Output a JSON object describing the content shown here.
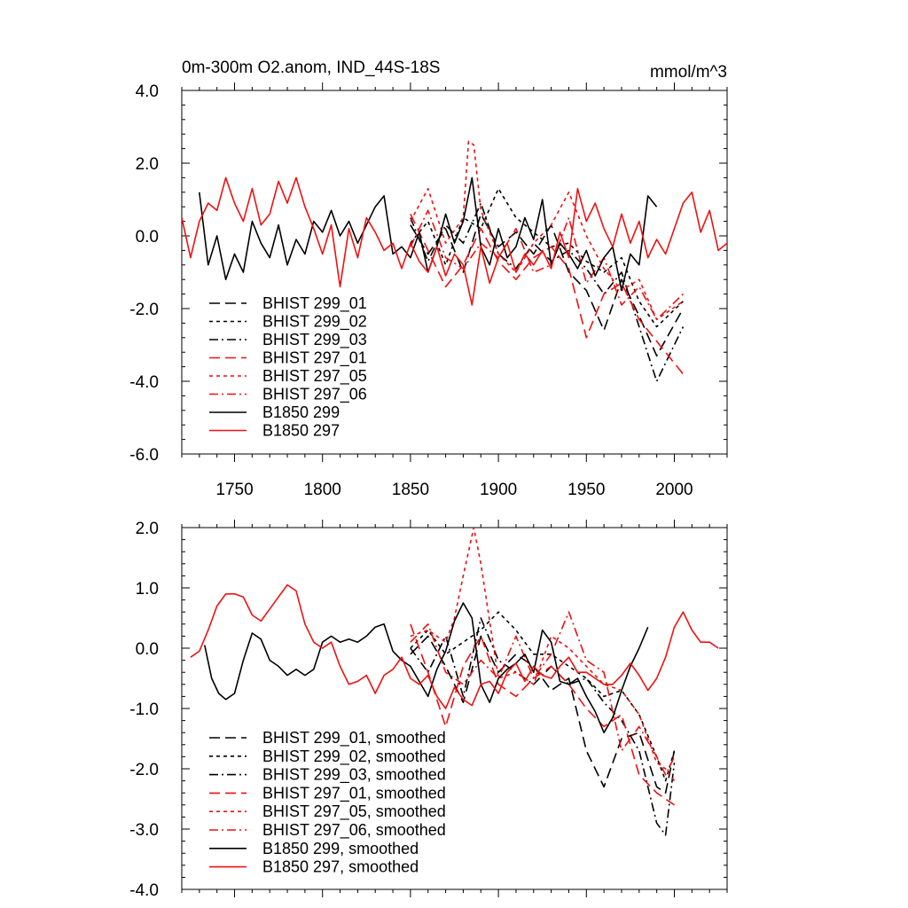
{
  "colors": {
    "black": "#000000",
    "red": "#ee1111"
  },
  "chart_data": [
    {
      "type": "line",
      "title": "0m-300m O2.anom, IND_44S-18S",
      "units": "mmol/m^3",
      "xlim": [
        1720,
        2030
      ],
      "ylim": [
        -6.0,
        4.0
      ],
      "x_ticks": [
        1750,
        1800,
        1850,
        1900,
        1950,
        2000
      ],
      "x_tick_labels": [
        "1750",
        "1800",
        "1850",
        "1900",
        "1950",
        "2000"
      ],
      "y_ticks": [
        4.0,
        2.0,
        0.0,
        -2.0,
        -4.0,
        -6.0
      ],
      "y_tick_labels": [
        "4.0",
        "2.0",
        "0.0",
        "-2.0",
        "-4.0",
        "-6.0"
      ],
      "legend_position": "lower-left",
      "series": [
        {
          "name": "BHIST 299_01",
          "color": "black",
          "dash": "long-dash",
          "x": [
            1850,
            1860,
            1870,
            1880,
            1890,
            1900,
            1910,
            1920,
            1930,
            1940,
            1950,
            1960,
            1970,
            1980,
            1990,
            2005
          ],
          "y": [
            0.3,
            -0.5,
            0.2,
            -1.0,
            0.6,
            -0.3,
            0.1,
            -0.5,
            0.3,
            -1.0,
            -1.5,
            -2.6,
            -1.2,
            -2.2,
            -3.3,
            -2.0
          ]
        },
        {
          "name": "BHIST 299_02",
          "color": "black",
          "dash": "short-dash",
          "x": [
            1850,
            1860,
            1870,
            1880,
            1890,
            1900,
            1910,
            1920,
            1930,
            1940,
            1950,
            1960,
            1970,
            1980,
            1990,
            2005
          ],
          "y": [
            -0.2,
            0.4,
            -0.8,
            0.5,
            0.2,
            1.3,
            0.5,
            0.1,
            -0.3,
            -0.2,
            -0.7,
            -1.0,
            -0.6,
            -1.8,
            -2.5,
            -1.8
          ]
        },
        {
          "name": "BHIST 299_03",
          "color": "black",
          "dash": "dash-dot",
          "x": [
            1850,
            1860,
            1870,
            1880,
            1890,
            1900,
            1910,
            1920,
            1930,
            1940,
            1950,
            1960,
            1970,
            1980,
            1990,
            2005
          ],
          "y": [
            0.5,
            -0.7,
            0.3,
            -0.2,
            0.9,
            -0.5,
            -0.9,
            -0.2,
            -0.7,
            -0.4,
            -0.9,
            -1.6,
            -1.0,
            -2.5,
            -4.0,
            -2.5
          ]
        },
        {
          "name": "BHIST 297_01",
          "color": "red",
          "dash": "long-dash",
          "x": [
            1850,
            1860,
            1870,
            1880,
            1890,
            1900,
            1910,
            1920,
            1930,
            1940,
            1950,
            1960,
            1970,
            1980,
            1990,
            2005
          ],
          "y": [
            0.6,
            -0.4,
            -1.4,
            -0.8,
            0.2,
            -0.7,
            -1.2,
            -0.6,
            -0.3,
            -0.9,
            -2.8,
            -1.6,
            -1.3,
            -2.3,
            -2.9,
            -3.8
          ]
        },
        {
          "name": "BHIST 297_05",
          "color": "red",
          "dash": "short-dash",
          "x": [
            1850,
            1860,
            1870,
            1880,
            1883,
            1886,
            1890,
            1900,
            1910,
            1920,
            1930,
            1940,
            1950,
            1960,
            1970,
            1980,
            1990,
            2005
          ],
          "y": [
            0.4,
            1.3,
            -0.2,
            0.5,
            2.6,
            2.5,
            0.7,
            -0.5,
            -1.0,
            -0.2,
            0.3,
            1.2,
            0.0,
            -0.9,
            -1.5,
            -1.2,
            -2.3,
            -1.8
          ]
        },
        {
          "name": "BHIST 297_06",
          "color": "red",
          "dash": "dash-dot",
          "x": [
            1850,
            1860,
            1870,
            1880,
            1890,
            1900,
            1910,
            1920,
            1930,
            1940,
            1950,
            1960,
            1970,
            1980,
            1990,
            2005
          ],
          "y": [
            -0.3,
            0.7,
            -0.6,
            -0.9,
            -0.2,
            -0.6,
            0.2,
            -1.0,
            -0.8,
            0.5,
            -1.3,
            -0.6,
            -1.9,
            -1.4,
            -2.3,
            -1.6
          ]
        },
        {
          "name": "B1850 299",
          "color": "black",
          "dash": "solid",
          "x": [
            1730,
            1735,
            1740,
            1745,
            1750,
            1755,
            1760,
            1765,
            1770,
            1775,
            1780,
            1785,
            1790,
            1795,
            1800,
            1805,
            1810,
            1815,
            1820,
            1825,
            1830,
            1835,
            1840,
            1845,
            1850,
            1855,
            1860,
            1865,
            1870,
            1875,
            1880,
            1885,
            1890,
            1895,
            1900,
            1905,
            1910,
            1915,
            1920,
            1925,
            1930,
            1935,
            1940,
            1945,
            1950,
            1955,
            1960,
            1965,
            1970,
            1975,
            1980,
            1985,
            1990
          ],
          "y": [
            1.2,
            -0.8,
            0.0,
            -1.2,
            -0.5,
            -1.0,
            0.4,
            -0.2,
            -0.6,
            0.3,
            -0.8,
            -0.1,
            -0.5,
            0.4,
            0.1,
            0.7,
            0.0,
            0.4,
            -0.2,
            0.3,
            0.8,
            1.1,
            -0.5,
            -0.3,
            -0.6,
            0.1,
            -1.0,
            -0.3,
            0.6,
            -0.2,
            0.4,
            1.6,
            -0.3,
            -0.8,
            0.2,
            -0.6,
            -0.3,
            0.5,
            -0.1,
            1.0,
            -0.8,
            -0.2,
            -0.5,
            -0.9,
            -0.4,
            -1.1,
            -0.6,
            -0.3,
            -1.5,
            -0.5,
            -0.8,
            1.1,
            0.8
          ]
        },
        {
          "name": "B1850 297",
          "color": "red",
          "dash": "solid",
          "x": [
            1720,
            1725,
            1730,
            1735,
            1740,
            1745,
            1750,
            1755,
            1760,
            1765,
            1770,
            1775,
            1780,
            1785,
            1790,
            1795,
            1800,
            1805,
            1810,
            1815,
            1820,
            1825,
            1830,
            1835,
            1840,
            1845,
            1850,
            1855,
            1860,
            1865,
            1870,
            1875,
            1880,
            1885,
            1890,
            1895,
            1900,
            1905,
            1910,
            1915,
            1920,
            1925,
            1930,
            1935,
            1940,
            1945,
            1950,
            1955,
            1960,
            1965,
            1970,
            1975,
            1980,
            1985,
            1990,
            1995,
            2000,
            2005,
            2010,
            2015,
            2020,
            2025,
            2030
          ],
          "y": [
            0.5,
            -0.6,
            0.4,
            0.9,
            0.7,
            1.6,
            0.9,
            0.4,
            1.3,
            0.3,
            0.6,
            1.5,
            0.9,
            1.6,
            0.8,
            0.2,
            -0.5,
            0.3,
            -1.4,
            0.2,
            -0.6,
            0.5,
            0.1,
            -0.4,
            -0.2,
            -0.9,
            -0.2,
            -0.7,
            -1.0,
            -0.3,
            -1.1,
            -0.5,
            -0.8,
            -1.9,
            -0.3,
            -1.3,
            -0.6,
            -0.2,
            -1.0,
            -0.5,
            -0.8,
            -0.4,
            -0.9,
            0.1,
            -0.6,
            1.3,
            0.4,
            0.9,
            0.2,
            -0.3,
            0.6,
            -0.2,
            0.4,
            -0.6,
            -0.1,
            -0.5,
            0.2,
            0.9,
            1.2,
            0.1,
            0.7,
            -0.4,
            -0.2
          ]
        }
      ]
    },
    {
      "type": "line",
      "title": "",
      "xlim": [
        1720,
        2030
      ],
      "ylim": [
        -4.0,
        2.0
      ],
      "x_ticks": [
        1750,
        1800,
        1850,
        1900,
        1950,
        2000
      ],
      "y_ticks": [
        2.0,
        1.0,
        0.0,
        -1.0,
        -2.0,
        -3.0,
        -4.0
      ],
      "y_tick_labels": [
        "2.0",
        "1.0",
        "0.0",
        "-1.0",
        "-2.0",
        "-3.0",
        "-4.0"
      ],
      "legend_position": "lower-left",
      "series": [
        {
          "name": "BHIST 299_01, smoothed",
          "color": "black",
          "dash": "long-dash",
          "x": [
            1850,
            1860,
            1870,
            1880,
            1890,
            1900,
            1910,
            1920,
            1930,
            1940,
            1950,
            1960,
            1970,
            1980,
            1990,
            1995,
            2000
          ],
          "y": [
            -0.1,
            0.2,
            -0.3,
            -0.9,
            0.2,
            -0.4,
            -0.1,
            -0.3,
            -0.7,
            -0.5,
            -1.7,
            -2.3,
            -1.5,
            -1.4,
            -2.3,
            -2.4,
            -1.7
          ]
        },
        {
          "name": "BHIST 299_02, smoothed",
          "color": "black",
          "dash": "short-dash",
          "x": [
            1850,
            1860,
            1870,
            1880,
            1890,
            1900,
            1910,
            1920,
            1930,
            1940,
            1950,
            1960,
            1970,
            1980,
            1990,
            1995,
            2000
          ],
          "y": [
            0.0,
            0.3,
            -0.1,
            0.1,
            0.3,
            0.6,
            0.3,
            -0.1,
            -0.1,
            -0.3,
            -0.5,
            -0.8,
            -0.7,
            -1.1,
            -1.8,
            -2.2,
            -1.7
          ]
        },
        {
          "name": "BHIST 299_03, smoothed",
          "color": "black",
          "dash": "dash-dot",
          "x": [
            1850,
            1860,
            1870,
            1880,
            1890,
            1900,
            1910,
            1920,
            1930,
            1940,
            1950,
            1960,
            1970,
            1980,
            1990,
            1995,
            2000
          ],
          "y": [
            0.0,
            -0.4,
            0.2,
            -0.8,
            0.5,
            -0.2,
            -0.4,
            -0.6,
            -0.3,
            -0.6,
            -0.5,
            -0.9,
            -1.2,
            -1.7,
            -2.9,
            -3.1,
            -1.9
          ]
        },
        {
          "name": "BHIST 297_01, smoothed",
          "color": "red",
          "dash": "long-dash",
          "x": [
            1850,
            1860,
            1870,
            1880,
            1890,
            1900,
            1910,
            1920,
            1930,
            1940,
            1950,
            1960,
            1970,
            1980,
            1990,
            1995,
            2000
          ],
          "y": [
            0.4,
            -0.4,
            -1.3,
            -0.3,
            0.2,
            -0.6,
            -0.8,
            -0.5,
            -0.3,
            -0.6,
            -1.0,
            -1.3,
            -1.1,
            -2.1,
            -2.4,
            -2.5,
            -2.6
          ]
        },
        {
          "name": "BHIST 297_05, smoothed",
          "color": "red",
          "dash": "short-dash",
          "x": [
            1850,
            1860,
            1870,
            1875,
            1880,
            1886,
            1890,
            1900,
            1910,
            1920,
            1930,
            1940,
            1950,
            1960,
            1970,
            1980,
            1990,
            1995,
            2000
          ],
          "y": [
            0.2,
            0.3,
            0.1,
            0.5,
            1.2,
            2.0,
            1.4,
            -0.5,
            -0.4,
            -0.6,
            0.2,
            0.0,
            -0.3,
            -0.6,
            -0.7,
            -1.1,
            -1.9,
            -2.0,
            -2.2
          ]
        },
        {
          "name": "BHIST 297_06, smoothed",
          "color": "red",
          "dash": "dash-dot",
          "x": [
            1850,
            1860,
            1870,
            1880,
            1890,
            1900,
            1910,
            1920,
            1930,
            1940,
            1950,
            1960,
            1970,
            1980,
            1990,
            1995,
            2000
          ],
          "y": [
            0.1,
            0.4,
            -0.4,
            -0.6,
            -0.2,
            -0.5,
            0.2,
            -0.5,
            -0.1,
            0.6,
            -0.2,
            -0.4,
            -1.7,
            -1.3,
            -1.8,
            -2.1,
            -1.8
          ]
        },
        {
          "name": "B1850 299, smoothed",
          "color": "black",
          "dash": "solid",
          "x": [
            1733,
            1737,
            1741,
            1745,
            1750,
            1755,
            1760,
            1765,
            1770,
            1775,
            1780,
            1785,
            1790,
            1795,
            1800,
            1805,
            1810,
            1815,
            1820,
            1825,
            1830,
            1835,
            1840,
            1845,
            1850,
            1855,
            1860,
            1865,
            1870,
            1875,
            1880,
            1885,
            1890,
            1895,
            1900,
            1905,
            1910,
            1915,
            1920,
            1925,
            1930,
            1935,
            1940,
            1945,
            1950,
            1955,
            1960,
            1965,
            1970,
            1975,
            1980,
            1985
          ],
          "y": [
            0.05,
            -0.5,
            -0.75,
            -0.85,
            -0.75,
            -0.2,
            0.25,
            0.15,
            -0.2,
            -0.3,
            -0.45,
            -0.35,
            -0.45,
            -0.35,
            0.1,
            0.2,
            0.1,
            0.15,
            0.1,
            0.2,
            0.35,
            0.4,
            -0.05,
            -0.2,
            -0.3,
            -0.55,
            -0.8,
            -0.35,
            -0.05,
            0.45,
            0.75,
            0.5,
            -0.6,
            -0.9,
            -0.5,
            -0.35,
            -0.25,
            -0.1,
            -0.4,
            0.3,
            0.1,
            -0.55,
            -0.6,
            -0.5,
            -0.8,
            -1.05,
            -1.4,
            -1.15,
            -0.7,
            -0.3,
            0.0,
            0.35
          ]
        },
        {
          "name": "B1850 297, smoothed",
          "color": "red",
          "dash": "solid",
          "x": [
            1725,
            1730,
            1735,
            1740,
            1745,
            1750,
            1755,
            1760,
            1765,
            1770,
            1775,
            1780,
            1785,
            1790,
            1795,
            1800,
            1805,
            1810,
            1815,
            1820,
            1825,
            1830,
            1835,
            1840,
            1845,
            1850,
            1855,
            1860,
            1865,
            1870,
            1875,
            1880,
            1885,
            1890,
            1895,
            1900,
            1905,
            1910,
            1915,
            1920,
            1925,
            1930,
            1935,
            1940,
            1945,
            1950,
            1955,
            1960,
            1965,
            1970,
            1975,
            1980,
            1985,
            1990,
            1995,
            2000,
            2005,
            2010,
            2015,
            2020,
            2025
          ],
          "y": [
            -0.15,
            -0.05,
            0.3,
            0.7,
            0.9,
            0.9,
            0.85,
            0.55,
            0.45,
            0.65,
            0.85,
            1.05,
            0.95,
            0.4,
            0.1,
            0.0,
            0.1,
            -0.3,
            -0.6,
            -0.55,
            -0.45,
            -0.75,
            -0.45,
            -0.35,
            -0.15,
            -0.5,
            -0.6,
            -0.45,
            -0.8,
            -1.0,
            -0.65,
            -0.85,
            -0.95,
            -0.6,
            -0.55,
            -0.75,
            -0.4,
            -0.25,
            -0.55,
            -0.3,
            -0.45,
            -0.5,
            -0.3,
            -0.15,
            -0.4,
            -0.4,
            -0.5,
            -0.6,
            -0.6,
            -0.45,
            -0.25,
            -0.45,
            -0.7,
            -0.5,
            -0.15,
            0.35,
            0.6,
            0.3,
            0.1,
            0.1,
            0.0
          ]
        }
      ]
    }
  ]
}
